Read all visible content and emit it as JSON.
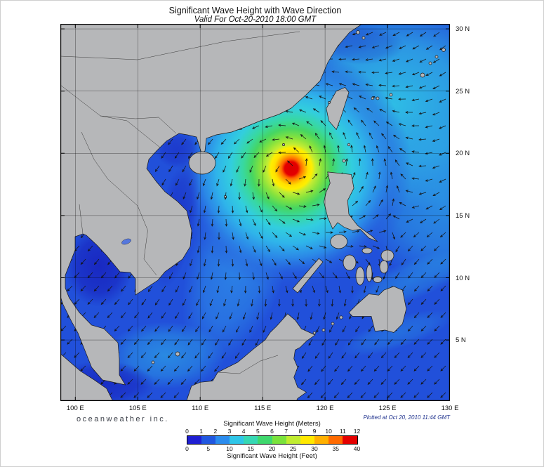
{
  "header": {
    "title": "Significant Wave Height with Wave Direction",
    "subtitle": "Valid For Oct-20-2010 18:00 GMT"
  },
  "axes": {
    "x_ticks": [
      "100 E",
      "105 E",
      "110 E",
      "115 E",
      "120 E",
      "125 E",
      "130 E"
    ],
    "y_ticks": [
      "30 N",
      "25 N",
      "20 N",
      "15 N",
      "10 N",
      "5 N"
    ]
  },
  "footer": {
    "branding": "oceanweather inc.",
    "plotted_at": "Plotted at Oct 20, 2010 11:44 GMT"
  },
  "legend": {
    "meters_label": "Significant Wave Height (Meters)",
    "feet_label": "Significant Wave Height (Feet)",
    "meters_ticks": [
      "0",
      "1",
      "2",
      "3",
      "4",
      "5",
      "6",
      "7",
      "8",
      "9",
      "10",
      "11",
      "12"
    ],
    "feet_ticks": [
      "0",
      "5",
      "10",
      "15",
      "20",
      "25",
      "30",
      "35",
      "40"
    ],
    "colors": [
      "#1f1fd2",
      "#2057e0",
      "#2b8cee",
      "#2fc6e8",
      "#36d8b4",
      "#3fd86e",
      "#7ae23c",
      "#c0ec30",
      "#ffe800",
      "#ffb000",
      "#ff6a00",
      "#e40000"
    ]
  },
  "colors": {
    "land": "#b6b7b9",
    "ocean": "#2150da",
    "storm_core": "#e00000",
    "grid": "#000000"
  }
}
